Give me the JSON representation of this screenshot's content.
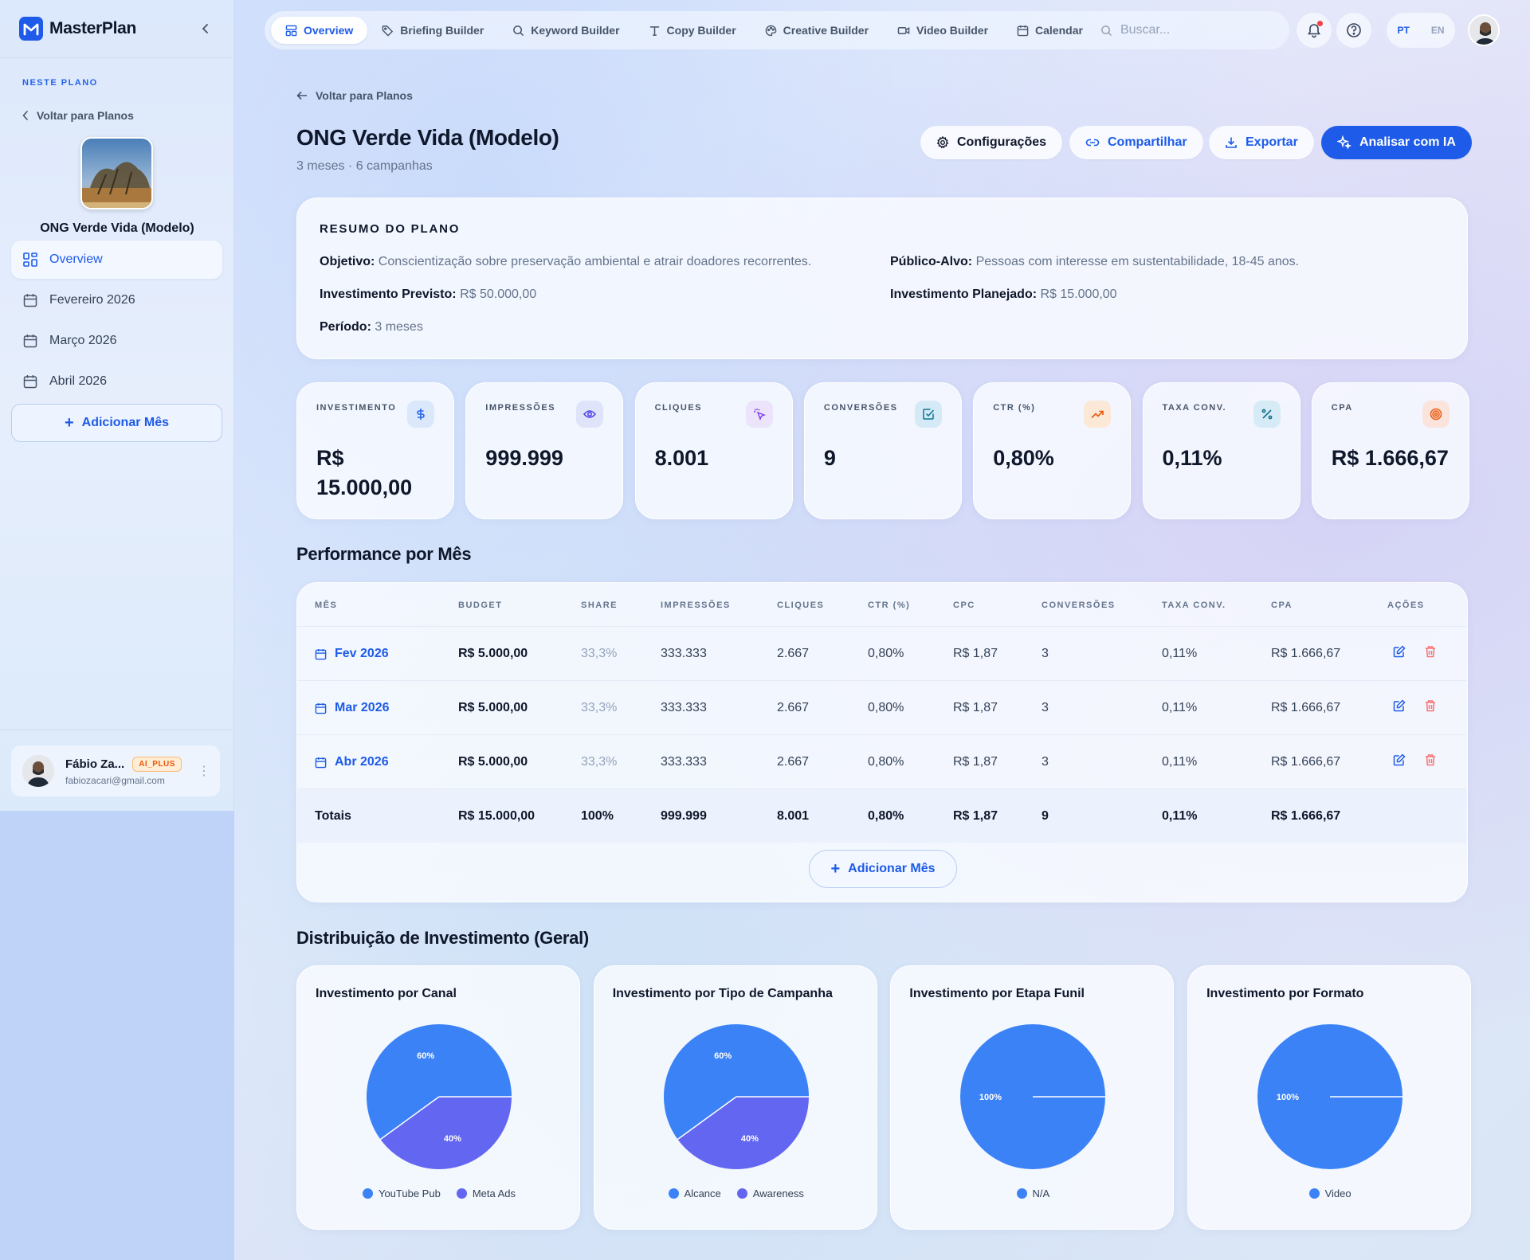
{
  "app": {
    "name": "MasterPlan",
    "logo_letter": "M"
  },
  "sidebar": {
    "section_title": "NESTE PLANO",
    "back_label": "Voltar para Planos",
    "plan_name": "ONG Verde Vida (Modelo)",
    "items": [
      {
        "label": "Overview",
        "icon": "grid-icon",
        "active": true
      },
      {
        "label": "Fevereiro 2026",
        "icon": "calendar-icon"
      },
      {
        "label": "Março 2026",
        "icon": "calendar-icon"
      },
      {
        "label": "Abril 2026",
        "icon": "calendar-icon"
      }
    ],
    "add_month_label": "Adicionar Mês",
    "user": {
      "name": "Fábio Za...",
      "badge": "AI_PLUS",
      "email": "fabiozacari@gmail.com"
    }
  },
  "topbar": {
    "tabs": [
      {
        "label": "Overview",
        "icon": "layout-icon",
        "active": true
      },
      {
        "label": "Briefing Builder",
        "icon": "tag-icon"
      },
      {
        "label": "Keyword Builder",
        "icon": "search-icon"
      },
      {
        "label": "Copy Builder",
        "icon": "type-icon"
      },
      {
        "label": "Creative Builder",
        "icon": "palette-icon"
      },
      {
        "label": "Video Builder",
        "icon": "video-icon"
      },
      {
        "label": "Calendar",
        "icon": "calendar-icon"
      }
    ],
    "search_placeholder": "Buscar...",
    "lang_pt": "PT",
    "lang_en": "EN"
  },
  "header": {
    "back_label": "Voltar para Planos",
    "title": "ONG Verde Vida (Modelo)",
    "subtitle": "3 meses · 6 campanhas",
    "actions": {
      "settings": "Configurações",
      "share": "Compartilhar",
      "export": "Exportar",
      "ai": "Analisar com IA"
    }
  },
  "summary": {
    "title": "RESUMO DO PLANO",
    "objetivo_label": "Objetivo:",
    "objetivo": "Conscientização sobre preservação ambiental e atrair doadores recorrentes.",
    "publico_label": "Público-Alvo:",
    "publico": "Pessoas com interesse em sustentabilidade, 18-45 anos.",
    "inv_previsto_label": "Investimento Previsto:",
    "inv_previsto": "R$ 50.000,00",
    "inv_planejado_label": "Investimento Planejado:",
    "inv_planejado": "R$ 15.000,00",
    "periodo_label": "Período:",
    "periodo": "3 meses"
  },
  "metrics": [
    {
      "label": "INVESTIMENTO",
      "value_line1": "R$",
      "value_line2": "15.000,00",
      "icon": "dollar-icon",
      "color": "#2563eb",
      "bg": "#dbe7fb"
    },
    {
      "label": "IMPRESSÕES",
      "value_line1": "999.999",
      "value_line2": "",
      "icon": "eye-icon",
      "color": "#4f46e5",
      "bg": "#e0e4fb"
    },
    {
      "label": "CLIQUES",
      "value_line1": "8.001",
      "value_line2": "",
      "icon": "cursor-click-icon",
      "color": "#7c3aed",
      "bg": "#ebe4fb"
    },
    {
      "label": "CONVERSÕES",
      "value_line1": "9",
      "value_line2": "",
      "icon": "check-square-icon",
      "color": "#0e7490",
      "bg": "#d4eaf6"
    },
    {
      "label": "CTR (%)",
      "value_line1": "0,80%",
      "value_line2": "",
      "icon": "trending-up-icon",
      "color": "#ea580c",
      "bg": "#fbe8d6"
    },
    {
      "label": "TAXA CONV.",
      "value_line1": "0,11%",
      "value_line2": "",
      "icon": "percent-icon",
      "color": "#0e7490",
      "bg": "#d6ebf6"
    },
    {
      "label": "CPA",
      "value_line1": "R$ 1.666,67",
      "value_line2": "",
      "icon": "target-icon",
      "color": "#ea580c",
      "bg": "#fbe4dc"
    }
  ],
  "performance": {
    "title": "Performance por Mês",
    "columns": [
      "MÊS",
      "BUDGET",
      "SHARE",
      "IMPRESSÕES",
      "CLIQUES",
      "CTR (%)",
      "CPC",
      "CONVERSÕES",
      "TAXA CONV.",
      "CPA",
      "AÇÕES"
    ],
    "rows": [
      [
        "Fev 2026",
        "R$ 5.000,00",
        "33,3%",
        "333.333",
        "2.667",
        "0,80%",
        "R$ 1,87",
        "3",
        "0,11%",
        "R$ 1.666,67"
      ],
      [
        "Mar 2026",
        "R$ 5.000,00",
        "33,3%",
        "333.333",
        "2.667",
        "0,80%",
        "R$ 1,87",
        "3",
        "0,11%",
        "R$ 1.666,67"
      ],
      [
        "Abr 2026",
        "R$ 5.000,00",
        "33,3%",
        "333.333",
        "2.667",
        "0,80%",
        "R$ 1,87",
        "3",
        "0,11%",
        "R$ 1.666,67"
      ]
    ],
    "totals": [
      "Totais",
      "R$ 15.000,00",
      "100%",
      "999.999",
      "8.001",
      "0,80%",
      "R$ 1,87",
      "9",
      "0,11%",
      "R$ 1.666,67"
    ],
    "add_month_label": "Adicionar Mês"
  },
  "distribution": {
    "title": "Distribuição de Investimento (Geral)"
  },
  "chart_data": [
    {
      "type": "pie",
      "title": "Investimento por Canal",
      "categories": [
        "YouTube Pub",
        "Meta Ads"
      ],
      "values": [
        60,
        40
      ],
      "labels": [
        "60%",
        "40%"
      ],
      "colors": [
        "#3b82f6",
        "#6366f1"
      ]
    },
    {
      "type": "pie",
      "title": "Investimento por Tipo de Campanha",
      "categories": [
        "Alcance",
        "Awareness"
      ],
      "values": [
        60,
        40
      ],
      "labels": [
        "60%",
        "40%"
      ],
      "colors": [
        "#3b82f6",
        "#6366f1"
      ]
    },
    {
      "type": "pie",
      "title": "Investimento por Etapa Funil",
      "categories": [
        "N/A"
      ],
      "values": [
        100
      ],
      "labels": [
        "100%"
      ],
      "colors": [
        "#3b82f6"
      ]
    },
    {
      "type": "pie",
      "title": "Investimento por Formato",
      "categories": [
        "Video"
      ],
      "values": [
        100
      ],
      "labels": [
        "100%"
      ],
      "colors": [
        "#3b82f6"
      ]
    }
  ]
}
